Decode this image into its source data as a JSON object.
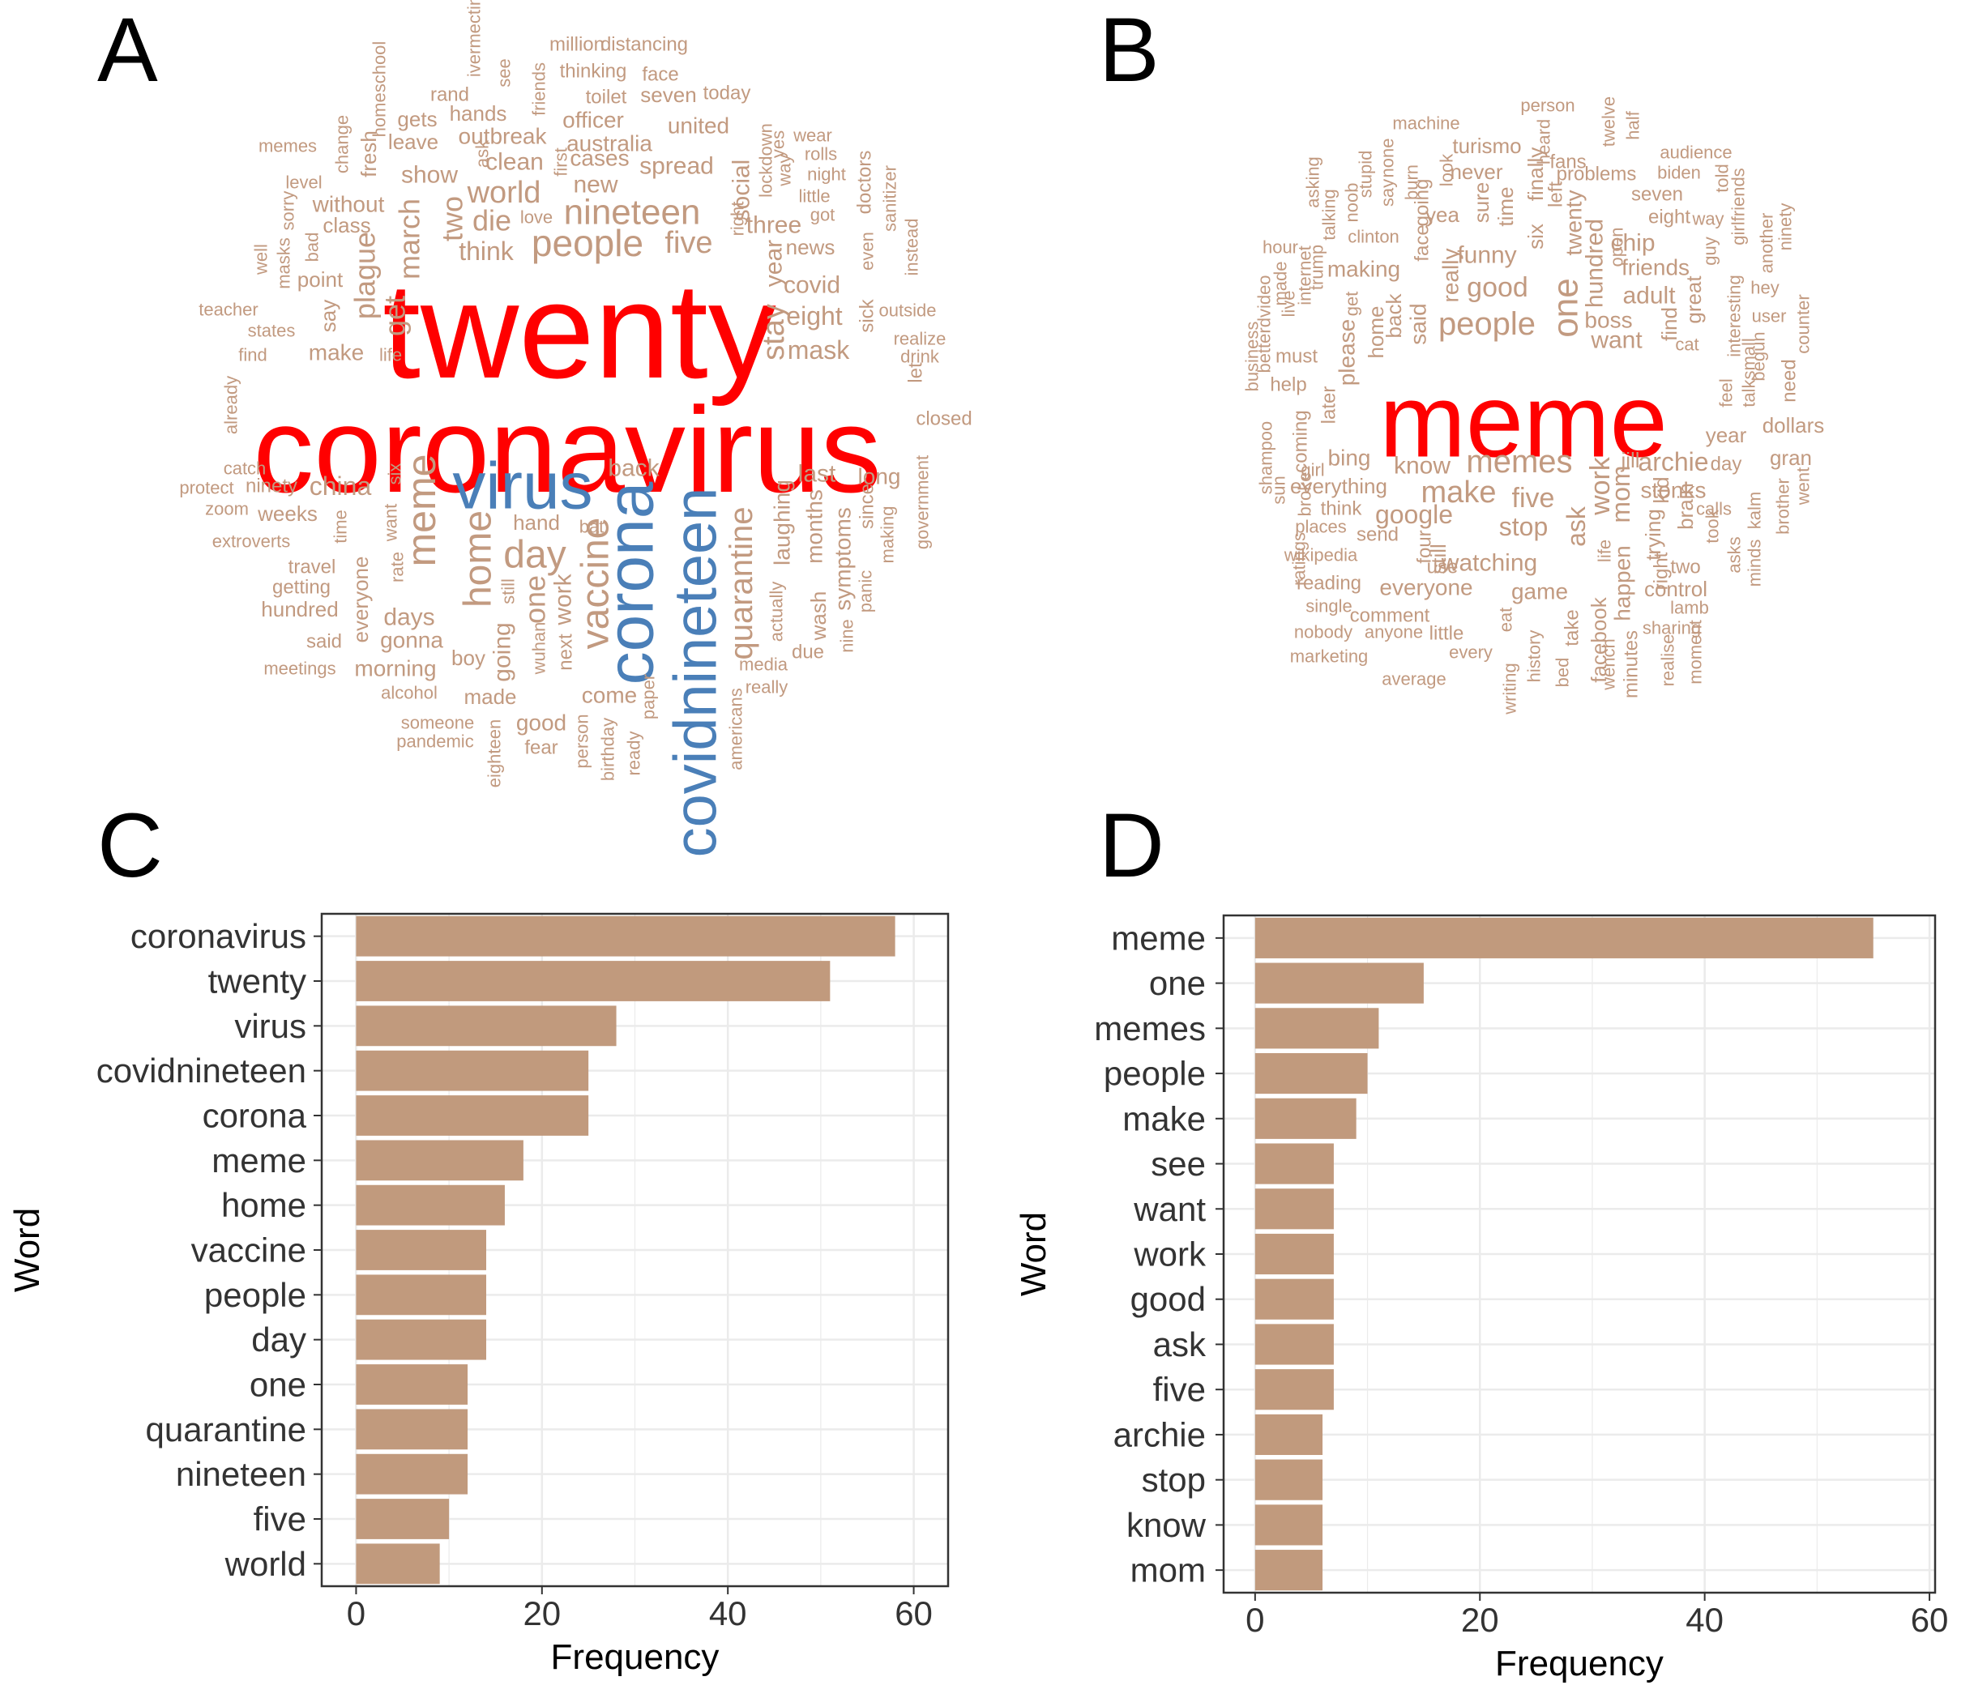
{
  "colors": {
    "bar": "#c19a7d",
    "cloud_default": "#c29a80",
    "cloud_red": "#ff0000",
    "cloud_blue": "#4a7fb8",
    "grid": "#ebebeb",
    "panel_border": "#333333"
  },
  "panels": {
    "a": {
      "letter": "A"
    },
    "b": {
      "letter": "B"
    },
    "c": {
      "letter": "C"
    },
    "d": {
      "letter": "D"
    }
  },
  "wordcloud_a": {
    "red": [
      "twenty",
      "coronavirus"
    ],
    "blue": [
      "virus",
      "corona",
      "covidnineteen"
    ],
    "words": [
      "ivermectin",
      "million",
      "distancing",
      "see",
      "homeschool",
      "rand",
      "thinking",
      "face",
      "friends",
      "gets",
      "toilet",
      "seven",
      "today",
      "hands",
      "officer",
      "united",
      "leave",
      "outbreak",
      "australia",
      "wear",
      "memes",
      "clean",
      "cases",
      "spread",
      "rolls",
      "change",
      "fresh",
      "level",
      "ask",
      "first",
      "new",
      "night",
      "show",
      "social",
      "lockdown",
      "way",
      "yes",
      "without",
      "world",
      "die",
      "love",
      "nineteen",
      "little",
      "doctors",
      "class",
      "two",
      "got",
      "sanitizer",
      "sorry",
      "march",
      "people",
      "five",
      "three",
      "right",
      "even",
      "news",
      "well",
      "masks",
      "bad",
      "think",
      "point",
      "plague",
      "year",
      "covid",
      "instead",
      "teacher",
      "say",
      "get",
      "stay",
      "eight",
      "outside",
      "states",
      "sick",
      "find",
      "make",
      "life",
      "mask",
      "realize",
      "drink",
      "let",
      "already",
      "closed",
      "catch",
      "protect",
      "ninety",
      "china",
      "six",
      "back",
      "last",
      "long",
      "zoom",
      "weeks",
      "want",
      "meme",
      "home",
      "hand",
      "bat",
      "since",
      "government",
      "extroverts",
      "time",
      "day",
      "vaccine",
      "laughing",
      "months",
      "symptoms",
      "travel",
      "rate",
      "still",
      "one",
      "work",
      "quarantine",
      "actually",
      "panic",
      "getting",
      "everyone",
      "days",
      "next",
      "wash",
      "nine",
      "making",
      "hundred",
      "gonna",
      "wuhan",
      "due",
      "said",
      "boy",
      "going",
      "media",
      "meetings",
      "morning",
      "really",
      "alcohol",
      "made",
      "come",
      "someone",
      "good",
      "americans",
      "pandemic",
      "paper",
      "fear",
      "eighteen",
      "person",
      "birthday",
      "ready"
    ]
  },
  "wordcloud_b": {
    "red": [
      "meme"
    ],
    "words": [
      "person",
      "machine",
      "turismo",
      "twelve",
      "heard",
      "half",
      "audience",
      "never",
      "fans",
      "problems",
      "biden",
      "asking",
      "stupid",
      "none",
      "look",
      "finally",
      "left",
      "seven",
      "told",
      "noob",
      "say",
      "burn",
      "yea",
      "sure",
      "time",
      "twenty",
      "girlfriends",
      "talking",
      "going",
      "eight",
      "way",
      "ninety",
      "another",
      "clinton",
      "six",
      "chip",
      "hour",
      "face",
      "funny",
      "hundred",
      "friends",
      "guy",
      "hey",
      "trump",
      "making",
      "open",
      "internet",
      "really",
      "good",
      "one",
      "adult",
      "interesting",
      "user",
      "betterdvideo",
      "made",
      "live",
      "business",
      "great",
      "get",
      "back",
      "said",
      "people",
      "boss",
      "want",
      "begun",
      "counter",
      "must",
      "please",
      "home",
      "cat",
      "find",
      "need",
      "help",
      "talksmall",
      "feel",
      "shampoo",
      "later",
      "coming",
      "year",
      "dollars",
      "bing",
      "know",
      "memes",
      "jill",
      "archie",
      "day",
      "gran",
      "girl",
      "everything",
      "make",
      "five",
      "work",
      "stonks",
      "went",
      "sun",
      "broke",
      "think",
      "google",
      "mom",
      "brain",
      "kalm",
      "brother",
      "places",
      "send",
      "stop",
      "ask",
      "took",
      "calls",
      "ratings",
      "wikipedia",
      "four",
      "still",
      "use",
      "watching",
      "life",
      "trying",
      "kid",
      "two",
      "asks",
      "minds",
      "reading",
      "everyone",
      "game",
      "happen",
      "right",
      "control",
      "single",
      "comment",
      "lamb",
      "nobody",
      "anyone",
      "little",
      "eat",
      "take",
      "facebook",
      "sharing",
      "marketing",
      "every",
      "history",
      "bed",
      "wench",
      "minutes",
      "realise",
      "moment",
      "average",
      "writing"
    ]
  },
  "chart_data": [
    {
      "type": "bar",
      "orientation": "horizontal",
      "panel": "C",
      "categories": [
        "coronavirus",
        "twenty",
        "virus",
        "covidnineteen",
        "corona",
        "meme",
        "home",
        "vaccine",
        "people",
        "day",
        "one",
        "quarantine",
        "nineteen",
        "five",
        "world"
      ],
      "values": [
        58,
        51,
        28,
        25,
        25,
        18,
        16,
        14,
        14,
        14,
        12,
        12,
        12,
        10,
        9
      ],
      "xlabel": "Frequency",
      "ylabel": "Word",
      "xlim": [
        -3.7,
        63.7
      ],
      "xticks": [
        0,
        20,
        40,
        60
      ],
      "xtick_labels": [
        "0",
        "20",
        "40",
        "60"
      ],
      "grid": true
    },
    {
      "type": "bar",
      "orientation": "horizontal",
      "panel": "D",
      "categories": [
        "meme",
        "one",
        "memes",
        "people",
        "make",
        "see",
        "want",
        "work",
        "good",
        "ask",
        "five",
        "archie",
        "stop",
        "know",
        "mom"
      ],
      "values": [
        55,
        15,
        11,
        10,
        9,
        7,
        7,
        7,
        7,
        7,
        7,
        6,
        6,
        6,
        6
      ],
      "xlabel": "Frequency",
      "ylabel": "Word",
      "xlim": [
        -2.8,
        60.5
      ],
      "xticks": [
        0,
        20,
        40,
        60
      ],
      "xtick_labels": [
        "0",
        "20",
        "40",
        "60"
      ],
      "grid": true
    }
  ]
}
